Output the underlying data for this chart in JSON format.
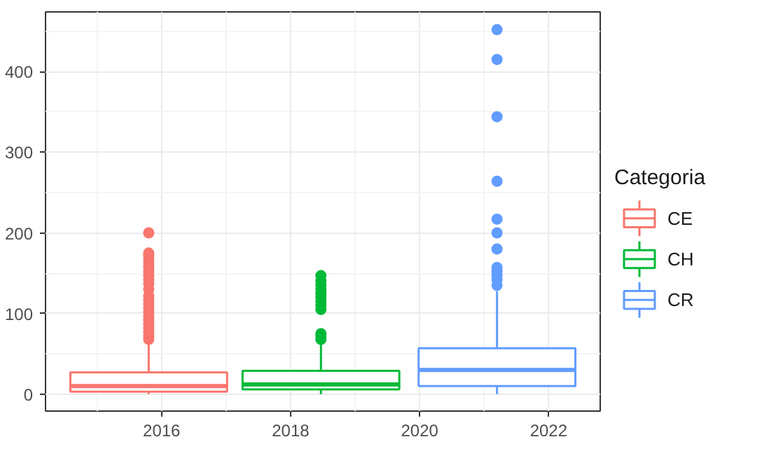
{
  "chart_data": {
    "type": "box",
    "legend_title": "Categoria",
    "legend": "right",
    "grid": true,
    "marker": "circle",
    "xlim": [
      2014.2,
      2022.8
    ],
    "xticks": [
      2016,
      2018,
      2020,
      2022
    ],
    "ylim": [
      -21,
      474
    ],
    "yticks": [
      0,
      100,
      200,
      300,
      400
    ],
    "series": [
      {
        "name": "CE",
        "color": "#f8766d",
        "x": [
          2015.8
        ],
        "boxes": [
          {
            "low": 0,
            "q1": 3,
            "median": 10,
            "q3": 27,
            "high": 65,
            "outliers": [
              68,
              72,
              77,
              82,
              87,
              92,
              97,
              102,
              107,
              112,
              117,
              122,
              130,
              137,
              142,
              147,
              152,
              157,
              162,
              167,
              172,
              175,
              200
            ]
          }
        ]
      },
      {
        "name": "CH",
        "color": "#00ba38",
        "x": [
          2018.47
        ],
        "boxes": [
          {
            "low": 0,
            "q1": 6,
            "median": 12,
            "q3": 29,
            "high": 64,
            "outliers": [
              68,
              72,
              75,
              105,
              110,
              115,
              120,
              125,
              130,
              135,
              140,
              147
            ]
          }
        ]
      },
      {
        "name": "CR",
        "color": "#619cff",
        "x": [
          2021.2
        ],
        "boxes": [
          {
            "low": 0,
            "q1": 10,
            "median": 30,
            "q3": 57,
            "high": 128,
            "outliers": [
              135,
              142,
              147,
              152,
              157,
              180,
              200,
              217,
              264,
              344,
              415,
              452
            ]
          }
        ]
      }
    ]
  }
}
